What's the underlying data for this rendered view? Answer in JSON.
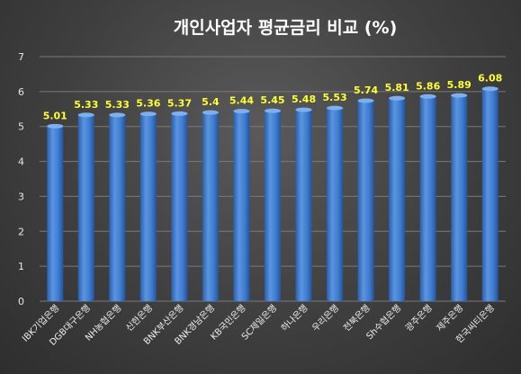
{
  "chart_data": {
    "type": "bar",
    "title": "개인사업자 평균금리 비교 (%)",
    "categories": [
      "IBK기업은행",
      "DGB대구은행",
      "NH농협은행",
      "신한은행",
      "BNK부산은행",
      "BNK경남은행",
      "KB국민은행",
      "SC제일은행",
      "하나은행",
      "우리은행",
      "전북은행",
      "Sh수협은행",
      "광주은행",
      "제주은행",
      "한국씨티은행"
    ],
    "values": [
      5.01,
      5.33,
      5.33,
      5.36,
      5.37,
      5.4,
      5.44,
      5.45,
      5.48,
      5.53,
      5.74,
      5.81,
      5.86,
      5.89,
      6.08
    ],
    "value_labels": [
      "5.01",
      "5.33",
      "5.33",
      "5.36",
      "5.37",
      "5.4",
      "5.44",
      "5.45",
      "5.48",
      "5.53",
      "5.74",
      "5.81",
      "5.86",
      "5.89",
      "6.08"
    ],
    "yticks": [
      "0",
      "1",
      "2",
      "3",
      "4",
      "5",
      "6",
      "7"
    ],
    "ylim": [
      0,
      7
    ],
    "grid": true,
    "legend": "none",
    "colors": {
      "bar": "#4a86d8",
      "bar_dark": "#1f4f9a",
      "label": "#ffff33",
      "grid": "#7a7a7a"
    }
  }
}
